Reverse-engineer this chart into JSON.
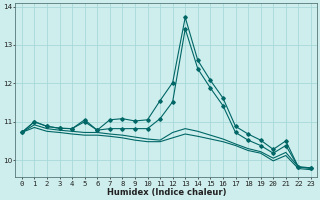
{
  "xlabel": "Humidex (Indice chaleur)",
  "background_color": "#ceeeed",
  "grid_color": "#a8d8d8",
  "line_color": "#006666",
  "xlim": [
    -0.5,
    23.5
  ],
  "ylim": [
    9.55,
    14.1
  ],
  "x": [
    0,
    1,
    2,
    3,
    4,
    5,
    6,
    7,
    8,
    9,
    10,
    11,
    12,
    13,
    14,
    15,
    16,
    17,
    18,
    19,
    20,
    21,
    22,
    23
  ],
  "line1": [
    10.72,
    11.0,
    10.88,
    10.83,
    10.82,
    11.05,
    10.78,
    11.05,
    11.08,
    11.02,
    11.05,
    11.55,
    12.02,
    13.72,
    12.6,
    12.08,
    11.62,
    10.88,
    10.68,
    10.52,
    10.28,
    10.5,
    9.82,
    9.8
  ],
  "line2": [
    10.72,
    11.0,
    10.88,
    10.83,
    10.82,
    11.0,
    10.78,
    10.82,
    10.82,
    10.82,
    10.82,
    11.08,
    11.52,
    13.42,
    12.38,
    11.88,
    11.42,
    10.72,
    10.52,
    10.38,
    10.18,
    10.38,
    9.82,
    9.8
  ],
  "line3": [
    10.72,
    10.92,
    10.82,
    10.78,
    10.75,
    10.72,
    10.72,
    10.68,
    10.65,
    10.6,
    10.55,
    10.52,
    10.72,
    10.82,
    10.75,
    10.65,
    10.55,
    10.42,
    10.3,
    10.22,
    10.05,
    10.2,
    9.82,
    9.78
  ],
  "line4": [
    10.72,
    10.85,
    10.75,
    10.72,
    10.68,
    10.65,
    10.65,
    10.62,
    10.58,
    10.52,
    10.48,
    10.48,
    10.58,
    10.68,
    10.62,
    10.55,
    10.48,
    10.38,
    10.25,
    10.18,
    9.98,
    10.12,
    9.78,
    9.75
  ],
  "yticks": [
    10,
    11,
    12,
    13,
    14
  ],
  "xticks": [
    0,
    1,
    2,
    3,
    4,
    5,
    6,
    7,
    8,
    9,
    10,
    11,
    12,
    13,
    14,
    15,
    16,
    17,
    18,
    19,
    20,
    21,
    22,
    23
  ],
  "xlabel_fontsize": 6.0,
  "tick_fontsize": 5.2
}
